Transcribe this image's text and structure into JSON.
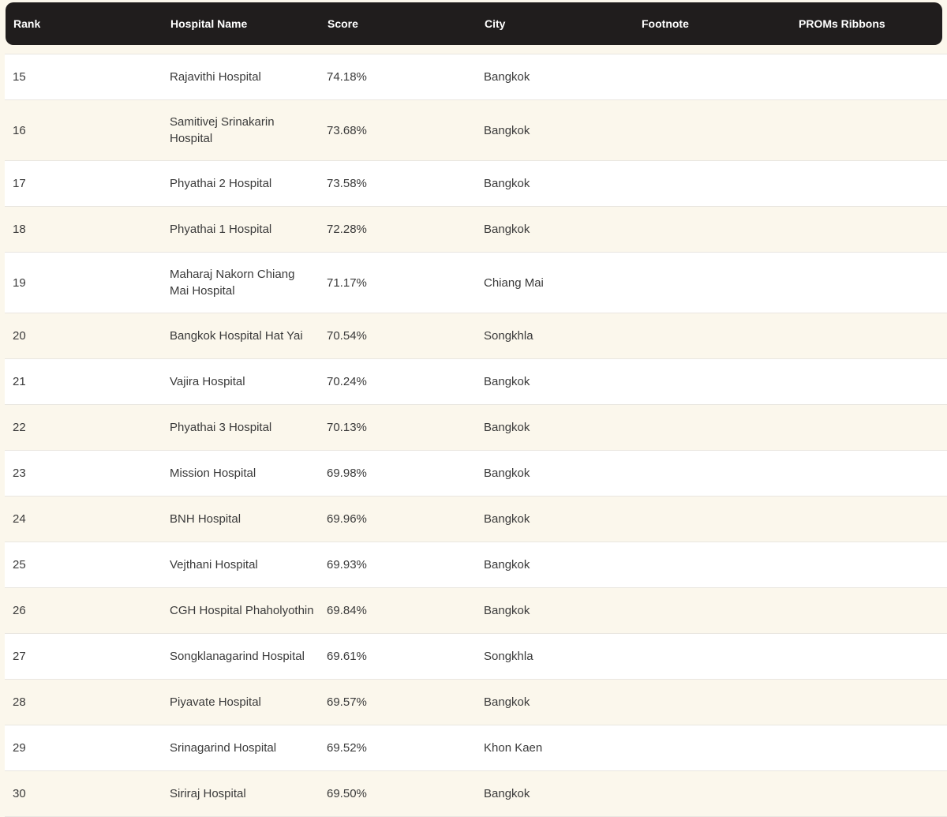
{
  "table": {
    "columns": [
      {
        "key": "rank",
        "label": "Rank"
      },
      {
        "key": "hospital",
        "label": "Hospital Name"
      },
      {
        "key": "score",
        "label": "Score"
      },
      {
        "key": "city",
        "label": "City"
      },
      {
        "key": "footnote",
        "label": "Footnote"
      },
      {
        "key": "proms",
        "label": "PROMs Ribbons"
      }
    ],
    "rows": [
      {
        "rank": "15",
        "hospital": "Rajavithi Hospital",
        "score": "74.18%",
        "city": "Bangkok",
        "footnote": "",
        "proms": ""
      },
      {
        "rank": "16",
        "hospital": "Samitivej Srinakarin Hospital",
        "score": "73.68%",
        "city": "Bangkok",
        "footnote": "",
        "proms": ""
      },
      {
        "rank": "17",
        "hospital": "Phyathai 2 Hospital",
        "score": "73.58%",
        "city": "Bangkok",
        "footnote": "",
        "proms": ""
      },
      {
        "rank": "18",
        "hospital": "Phyathai 1 Hospital",
        "score": "72.28%",
        "city": "Bangkok",
        "footnote": "",
        "proms": ""
      },
      {
        "rank": "19",
        "hospital": "Maharaj Nakorn Chiang Mai Hospital",
        "score": "71.17%",
        "city": "Chiang Mai",
        "footnote": "",
        "proms": ""
      },
      {
        "rank": "20",
        "hospital": "Bangkok Hospital Hat Yai",
        "score": "70.54%",
        "city": "Songkhla",
        "footnote": "",
        "proms": ""
      },
      {
        "rank": "21",
        "hospital": "Vajira Hospital",
        "score": "70.24%",
        "city": "Bangkok",
        "footnote": "",
        "proms": ""
      },
      {
        "rank": "22",
        "hospital": "Phyathai 3 Hospital",
        "score": "70.13%",
        "city": "Bangkok",
        "footnote": "",
        "proms": ""
      },
      {
        "rank": "23",
        "hospital": "Mission Hospital",
        "score": "69.98%",
        "city": "Bangkok",
        "footnote": "",
        "proms": ""
      },
      {
        "rank": "24",
        "hospital": "BNH Hospital",
        "score": "69.96%",
        "city": "Bangkok",
        "footnote": "",
        "proms": ""
      },
      {
        "rank": "25",
        "hospital": "Vejthani Hospital",
        "score": "69.93%",
        "city": "Bangkok",
        "footnote": "",
        "proms": ""
      },
      {
        "rank": "26",
        "hospital": "CGH Hospital Phaholyothin",
        "score": "69.84%",
        "city": "Bangkok",
        "footnote": "",
        "proms": ""
      },
      {
        "rank": "27",
        "hospital": "Songklanagarind Hospital",
        "score": "69.61%",
        "city": "Songkhla",
        "footnote": "",
        "proms": ""
      },
      {
        "rank": "28",
        "hospital": "Piyavate Hospital",
        "score": "69.57%",
        "city": "Bangkok",
        "footnote": "",
        "proms": ""
      },
      {
        "rank": "29",
        "hospital": "Srinagarind Hospital",
        "score": "69.52%",
        "city": "Khon Kaen",
        "footnote": "",
        "proms": ""
      },
      {
        "rank": "30",
        "hospital": "Siriraj Hospital",
        "score": "69.50%",
        "city": "Bangkok",
        "footnote": "",
        "proms": ""
      }
    ]
  },
  "colors": {
    "header_bg": "#201d1d",
    "header_text": "#ffffff",
    "row_white": "#ffffff",
    "row_alt": "#fbf7ec",
    "divider": "#e9e6e0",
    "body_text": "#3a3a3a"
  }
}
